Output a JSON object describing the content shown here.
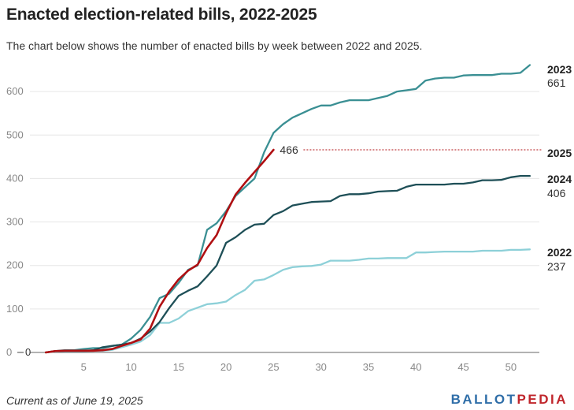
{
  "title": "Enacted election-related bills, 2022-2025",
  "subtitle": "The chart below shows the number of enacted bills by week between 2022 and 2025.",
  "footer": "Current as of June 19, 2025",
  "logo": {
    "part1": "BALLOT",
    "part2": "PEDIA",
    "color1": "#2f6ea8",
    "color2": "#c0262c"
  },
  "chart_data": {
    "type": "line",
    "xlim": [
      0,
      53
    ],
    "ylim": [
      0,
      680
    ],
    "x_ticks": [
      5,
      10,
      15,
      20,
      25,
      30,
      35,
      40,
      45,
      50
    ],
    "y_ticks": [
      0,
      100,
      200,
      300,
      400,
      500,
      600
    ],
    "y_tick_labels": [
      "0",
      "100",
      "200",
      "300",
      "400",
      "500",
      "600"
    ],
    "zero_marker": "0",
    "series": [
      {
        "name": "2022",
        "end_label": "237",
        "color": "#8dd0d8",
        "x": [
          1,
          2,
          3,
          4,
          5,
          6,
          7,
          8,
          9,
          10,
          11,
          12,
          13,
          14,
          15,
          16,
          17,
          18,
          19,
          20,
          21,
          22,
          23,
          24,
          25,
          26,
          27,
          28,
          29,
          30,
          31,
          32,
          33,
          34,
          35,
          36,
          37,
          38,
          39,
          40,
          41,
          42,
          43,
          44,
          45,
          46,
          47,
          48,
          49,
          50,
          51,
          52
        ],
        "values": [
          0,
          2,
          3,
          3,
          3,
          4,
          4,
          6,
          12,
          18,
          25,
          40,
          68,
          68,
          78,
          95,
          103,
          111,
          113,
          117,
          132,
          144,
          165,
          168,
          178,
          190,
          196,
          198,
          199,
          202,
          211,
          211,
          211,
          213,
          216,
          216,
          217,
          217,
          217,
          230,
          230,
          231,
          232,
          232,
          232,
          232,
          234,
          234,
          234,
          236,
          236,
          237
        ]
      },
      {
        "name": "2023",
        "end_label": "661",
        "color": "#3a8f93",
        "x": [
          1,
          2,
          3,
          4,
          5,
          6,
          7,
          8,
          9,
          10,
          11,
          12,
          13,
          14,
          15,
          16,
          17,
          18,
          19,
          20,
          21,
          22,
          23,
          24,
          25,
          26,
          27,
          28,
          29,
          30,
          31,
          32,
          33,
          34,
          35,
          36,
          37,
          38,
          39,
          40,
          41,
          42,
          43,
          44,
          45,
          46,
          47,
          48,
          49,
          50,
          51,
          52
        ],
        "values": [
          0,
          3,
          5,
          5,
          8,
          10,
          10,
          15,
          18,
          32,
          52,
          82,
          125,
          135,
          160,
          190,
          200,
          282,
          297,
          325,
          360,
          380,
          400,
          460,
          505,
          525,
          540,
          550,
          560,
          568,
          568,
          575,
          580,
          580,
          580,
          585,
          590,
          600,
          603,
          606,
          625,
          630,
          632,
          632,
          637,
          638,
          638,
          638,
          641,
          641,
          643,
          661
        ]
      },
      {
        "name": "2024",
        "end_label": "406",
        "color": "#1e4f57",
        "x": [
          1,
          2,
          3,
          4,
          5,
          6,
          7,
          8,
          9,
          10,
          11,
          12,
          13,
          14,
          15,
          16,
          17,
          18,
          19,
          20,
          21,
          22,
          23,
          24,
          25,
          26,
          27,
          28,
          29,
          30,
          31,
          32,
          33,
          34,
          35,
          36,
          37,
          38,
          39,
          40,
          41,
          42,
          43,
          44,
          45,
          46,
          47,
          48,
          49,
          50,
          51,
          52
        ],
        "values": [
          0,
          3,
          4,
          4,
          4,
          5,
          12,
          15,
          18,
          22,
          32,
          48,
          70,
          102,
          130,
          142,
          152,
          175,
          200,
          252,
          265,
          282,
          294,
          296,
          316,
          325,
          338,
          342,
          346,
          347,
          348,
          360,
          364,
          364,
          366,
          370,
          371,
          372,
          381,
          386,
          386,
          386,
          386,
          388,
          388,
          391,
          396,
          396,
          397,
          403,
          406,
          406
        ]
      },
      {
        "name": "2025",
        "end_label": "466",
        "color": "#b00f12",
        "x": [
          1,
          2,
          3,
          4,
          5,
          6,
          7,
          8,
          9,
          10,
          11,
          12,
          13,
          14,
          15,
          16,
          17,
          18,
          19,
          20,
          21,
          22,
          23,
          24,
          25
        ],
        "values": [
          0,
          3,
          4,
          4,
          4,
          4,
          5,
          8,
          15,
          22,
          30,
          55,
          105,
          140,
          168,
          188,
          202,
          240,
          270,
          320,
          363,
          390,
          415,
          440,
          466
        ]
      }
    ],
    "reference_line": {
      "series": "2025",
      "value": 466,
      "label": "466"
    }
  }
}
